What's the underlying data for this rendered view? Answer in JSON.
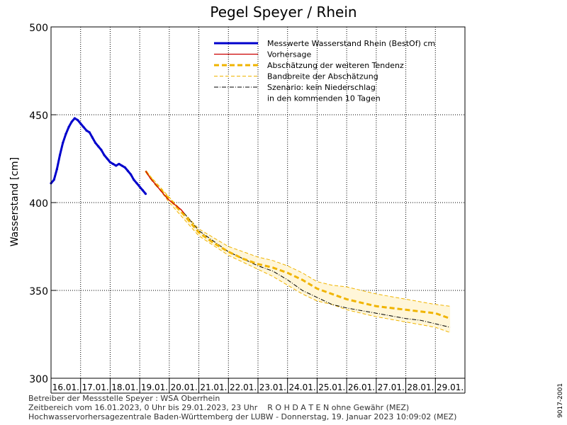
{
  "chart_data": {
    "type": "line",
    "title": "Pegel Speyer / Rhein",
    "ylabel": "Wasserstand [cm]",
    "xlabel": "",
    "ylim": [
      300,
      500
    ],
    "xlim": [
      0,
      14
    ],
    "yticks": [
      300,
      350,
      400,
      450,
      500
    ],
    "x_tick_labels": [
      "16.01.",
      "17.01.",
      "18.01.",
      "19.01.",
      "20.01.",
      "21.01.",
      "22.01.",
      "23.01.",
      "24.01.",
      "25.01.",
      "26.01.",
      "27.01.",
      "28.01.",
      "29.01."
    ],
    "grid": true,
    "legend_position": "top-right",
    "legend": [
      {
        "label": "Messwerte Wasserstand Rhein (BestOf)  cm",
        "style": "measured",
        "color": "#0000cc"
      },
      {
        "label": "Vorhersage",
        "style": "forecast",
        "color": "#cc0000"
      },
      {
        "label": "Abschätzung der weiteren Tendenz",
        "style": "tendency",
        "color": "#f0b400"
      },
      {
        "label": "Bandbreite der Abschätzung",
        "style": "band",
        "color": "#f0b400"
      },
      {
        "label": "Szenario: kein Niederschlag",
        "style": "scenario",
        "color": "#000000"
      },
      {
        "label": "in den kommenden 10 Tagen",
        "style": "none",
        "color": "#000000"
      }
    ],
    "series": [
      {
        "name": "Messwerte Wasserstand Rhein (BestOf)",
        "kind": "measured",
        "color": "#0000cc",
        "x": [
          0,
          0.1,
          0.2,
          0.3,
          0.4,
          0.5,
          0.6,
          0.7,
          0.8,
          0.9,
          1.0,
          1.1,
          1.2,
          1.3,
          1.4,
          1.5,
          1.6,
          1.7,
          1.8,
          1.9,
          2.0,
          2.1,
          2.2,
          2.3,
          2.4,
          2.5,
          2.6,
          2.7,
          2.8,
          2.9,
          3.0,
          3.1,
          3.2
        ],
        "y": [
          411,
          413,
          419,
          427,
          434,
          439,
          443,
          446,
          448,
          447,
          445,
          443,
          441,
          440,
          437,
          434,
          432,
          430,
          427,
          425,
          423,
          422,
          421,
          422,
          421,
          420,
          418,
          416,
          413,
          411,
          409,
          407,
          405
        ]
      },
      {
        "name": "Vorhersage",
        "kind": "forecast",
        "color": "#cc0000",
        "x": [
          3.2,
          3.35,
          3.5,
          3.65,
          3.8,
          3.95,
          4.1,
          4.25,
          4.4,
          4.5
        ],
        "y": [
          418,
          414,
          411,
          408,
          405,
          402,
          400,
          398,
          396,
          394
        ]
      },
      {
        "name": "Abschätzung der weiteren Tendenz",
        "kind": "tendency",
        "color": "#f0b400",
        "x": [
          3.2,
          3.5,
          4.0,
          4.5,
          5.0,
          5.5,
          6.0,
          6.5,
          7.0,
          7.5,
          8.0,
          8.5,
          9.0,
          9.5,
          10.0,
          10.5,
          11.0,
          11.5,
          12.0,
          12.5,
          13.0,
          13.5
        ],
        "y": [
          418,
          411,
          402,
          393,
          383,
          377,
          372,
          368,
          365,
          363,
          360,
          356,
          351,
          348,
          345,
          343,
          341,
          340,
          339,
          338,
          337,
          334
        ]
      },
      {
        "name": "Bandbreite der Abschätzung (oben)",
        "kind": "band",
        "color": "#f0b400",
        "x": [
          3.2,
          4.0,
          5.0,
          6.0,
          7.0,
          7.5,
          8.0,
          8.5,
          9.0,
          9.5,
          10.0,
          11.0,
          12.0,
          13.0,
          13.5
        ],
        "y": [
          418,
          403,
          385,
          375,
          369,
          367,
          364,
          360,
          355,
          353,
          352,
          348,
          345,
          342,
          341
        ]
      },
      {
        "name": "Bandbreite der Abschätzung (unten)",
        "kind": "band",
        "color": "#f0b400",
        "x": [
          3.2,
          4.0,
          5.0,
          6.0,
          7.0,
          7.5,
          8.0,
          8.5,
          9.0,
          9.5,
          10.0,
          11.0,
          12.0,
          13.0,
          13.5
        ],
        "y": [
          418,
          400,
          381,
          370,
          362,
          358,
          353,
          348,
          344,
          342,
          339,
          335,
          332,
          329,
          326
        ]
      },
      {
        "name": "Szenario: kein Niederschlag",
        "kind": "scenario",
        "color": "#000000",
        "x": [
          4.5,
          5.0,
          6.0,
          7.0,
          7.5,
          8.0,
          8.5,
          9.0,
          9.5,
          10.0,
          11.0,
          12.0,
          12.5,
          13.0,
          13.5
        ],
        "y": [
          394,
          384,
          372,
          364,
          361,
          356,
          350,
          346,
          342,
          340,
          337,
          334,
          333,
          331,
          329
        ]
      }
    ]
  },
  "side_code": "9017-2001",
  "footer": {
    "line1": "Betreiber der Messstelle Speyer : WSA Oberrhein",
    "line2": "Zeitbereich vom 16.01.2023, 0 Uhr bis 29.01.2023, 23 Uhr    R O H D A T E N ohne Gewähr (MEZ)",
    "line3": "Hochwasservorhersagezentrale Baden-Württemberg der LUBW - Donnerstag, 19. Januar 2023 10:09:02 (MEZ)"
  }
}
